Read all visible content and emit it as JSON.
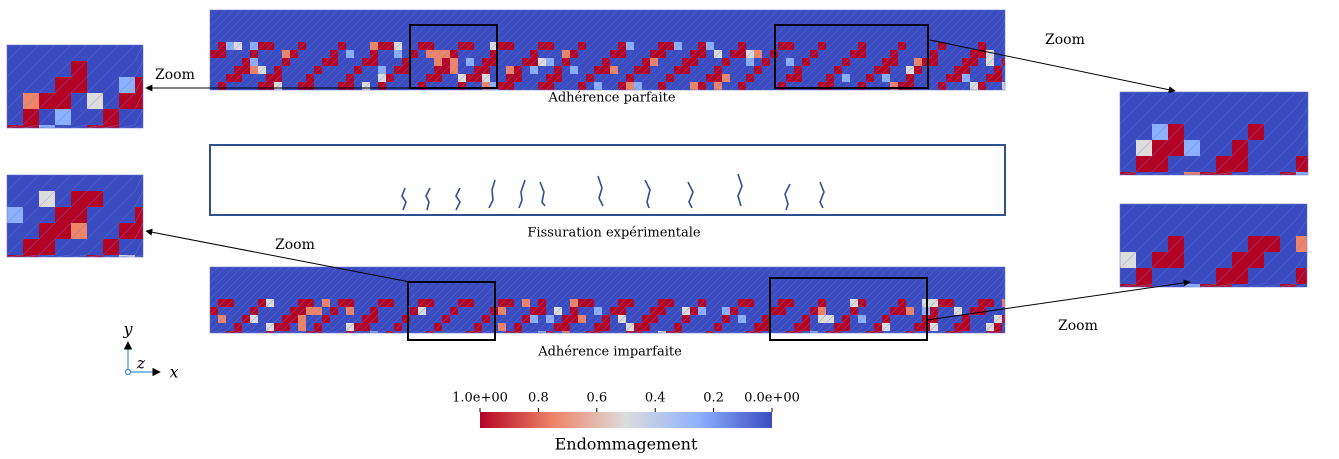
{
  "panels": [
    {
      "label": "Adhérence parfaite"
    },
    {
      "label": "Fissuration expérimentale"
    },
    {
      "label": "Adhérence imparfaite"
    }
  ],
  "zoom_labels": [
    "Zoom",
    "Zoom",
    "Zoom",
    "Zoom"
  ],
  "axes": {
    "y": "y",
    "z": "z",
    "x": "x"
  },
  "colorbar": {
    "title": "Endommagement",
    "lim": [
      1,
      0
    ],
    "ticks": [
      {
        "value": 1,
        "label": "1.0e+00"
      },
      0.8,
      0.6,
      0.4,
      0.2,
      {
        "value": 0,
        "label": "0.0e+00"
      }
    ]
  }
}
